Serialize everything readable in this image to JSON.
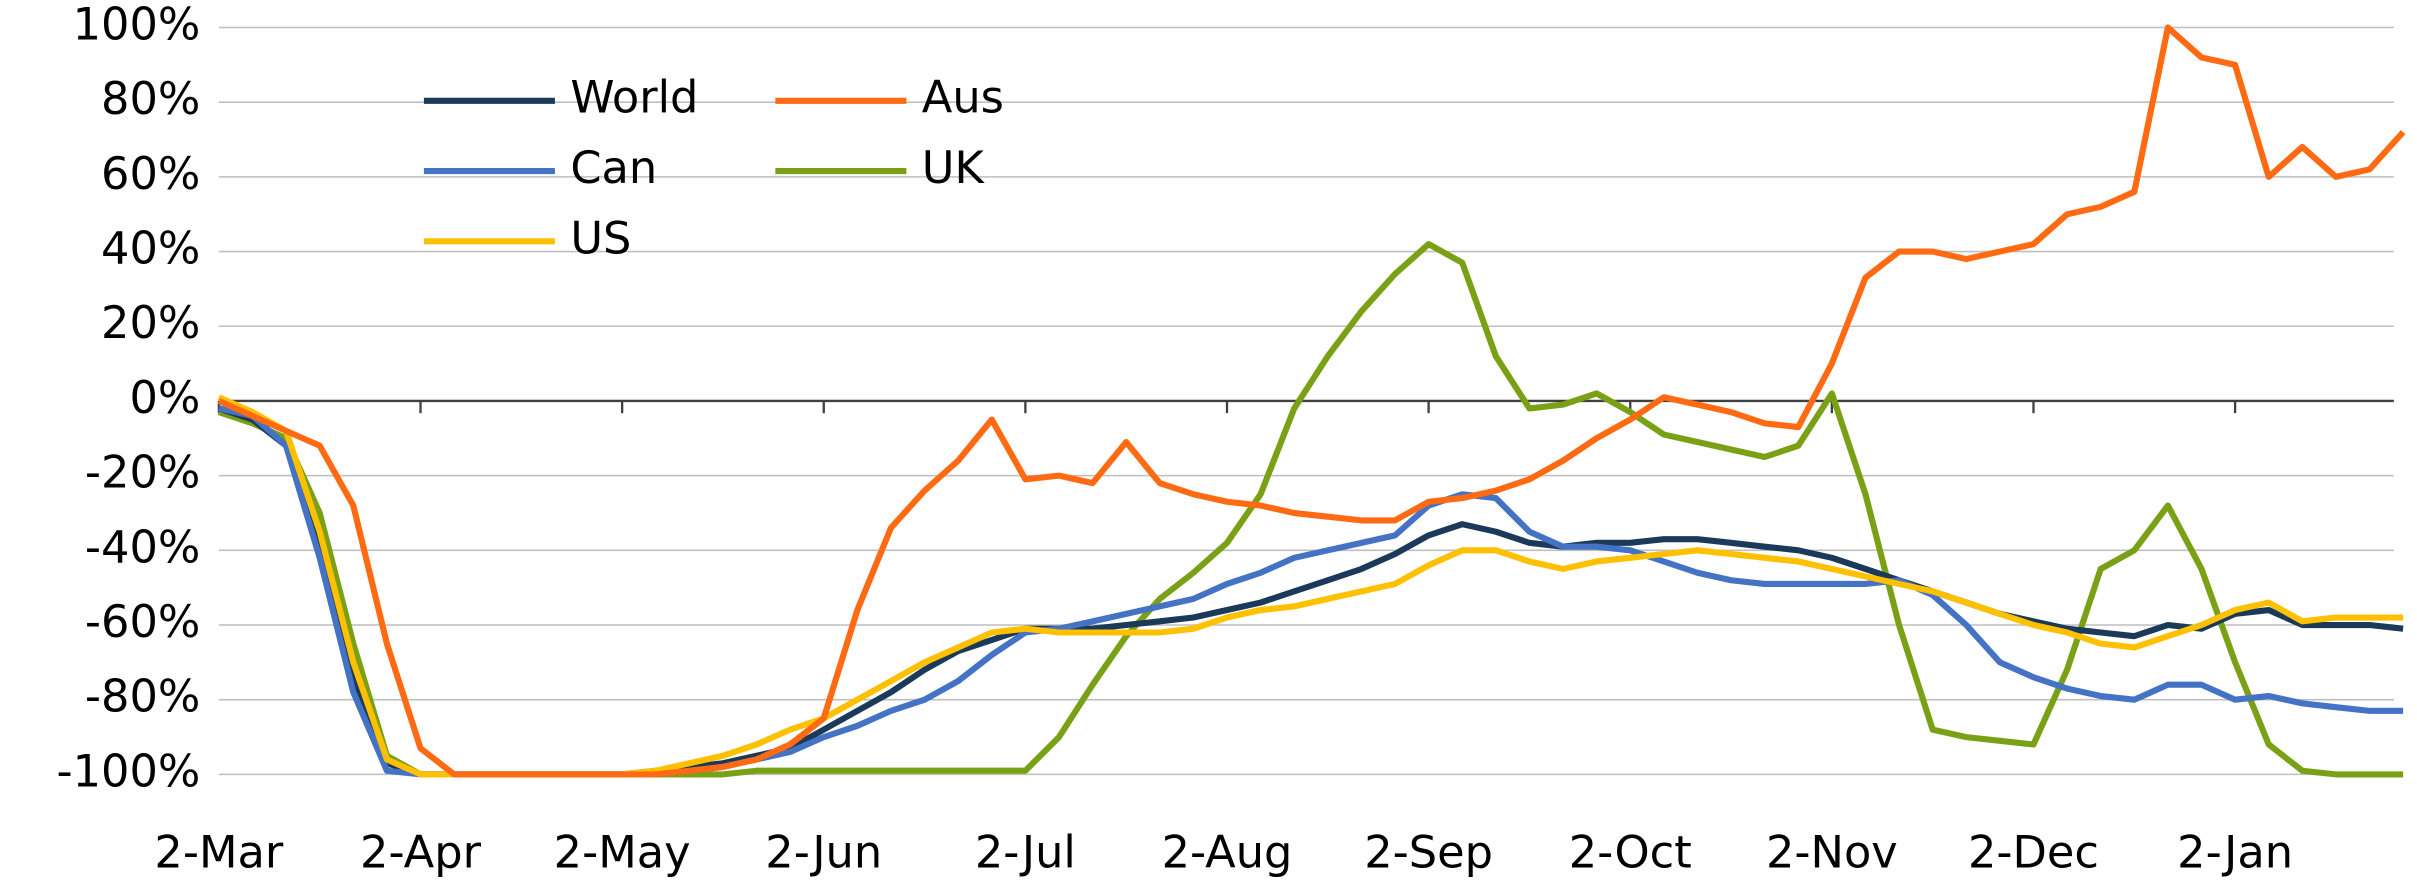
{
  "chart_data": {
    "type": "line",
    "categories": [
      "2-Mar",
      null,
      null,
      null,
      null,
      null,
      "2-Apr",
      null,
      null,
      null,
      null,
      null,
      "2-May",
      null,
      null,
      null,
      null,
      null,
      "2-Jun",
      null,
      null,
      null,
      null,
      null,
      "2-Jul",
      null,
      null,
      null,
      null,
      null,
      "2-Aug",
      null,
      null,
      null,
      null,
      null,
      "2-Sep",
      null,
      null,
      null,
      null,
      null,
      "2-Oct",
      null,
      null,
      null,
      null,
      null,
      "2-Nov",
      null,
      null,
      null,
      null,
      null,
      "2-Dec",
      null,
      null,
      null,
      null,
      null,
      "2-Jan",
      null,
      null,
      null,
      null,
      null
    ],
    "series": [
      {
        "name": "World",
        "color": "#1b3a5a",
        "values": [
          -2,
          -5,
          -12,
          -40,
          -75,
          -97,
          -100,
          -100,
          -100,
          -100,
          -100,
          -100,
          -100,
          -99,
          -98,
          -97,
          -95,
          -93,
          -88,
          -83,
          -78,
          -72,
          -67,
          -64,
          -61,
          -61,
          -61,
          -60,
          -59,
          -58,
          -56,
          -54,
          -51,
          -48,
          -45,
          -41,
          -36,
          -33,
          -35,
          -38,
          -39,
          -38,
          -38,
          -37,
          -37,
          -38,
          -39,
          -40,
          -42,
          -45,
          -48,
          -51,
          -54,
          -57,
          -59,
          -61,
          -62,
          -63,
          -60,
          -61,
          -57,
          -56,
          -60,
          -60,
          -60,
          -61
        ]
      },
      {
        "name": "Aus",
        "color": "#ff6a13",
        "values": [
          0,
          -4,
          -8,
          -12,
          -28,
          -65,
          -93,
          -100,
          -100,
          -100,
          -100,
          -100,
          -100,
          -100,
          -99,
          -98,
          -96,
          -92,
          -85,
          -56,
          -34,
          -24,
          -16,
          -5,
          -21,
          -20,
          -22,
          -11,
          -22,
          -25,
          -27,
          -28,
          -30,
          -31,
          -32,
          -32,
          -27,
          -26,
          -24,
          -21,
          -16,
          -10,
          -5,
          1,
          -1,
          -3,
          -6,
          -7,
          10,
          33,
          40,
          40,
          38,
          40,
          42,
          50,
          52,
          56,
          100,
          92,
          90,
          60,
          68,
          60,
          62,
          72
        ]
      },
      {
        "name": "Can",
        "color": "#4472c4",
        "values": [
          -2,
          -4,
          -12,
          -42,
          -78,
          -99,
          -100,
          -100,
          -100,
          -100,
          -100,
          -100,
          -100,
          -100,
          -99,
          -98,
          -96,
          -94,
          -90,
          -87,
          -83,
          -80,
          -75,
          -68,
          -62,
          -61,
          -59,
          -57,
          -55,
          -53,
          -49,
          -46,
          -42,
          -40,
          -38,
          -36,
          -28,
          -25,
          -26,
          -35,
          -39,
          -39,
          -40,
          -43,
          -46,
          -48,
          -49,
          -49,
          -49,
          -49,
          -48,
          -52,
          -60,
          -70,
          -74,
          -77,
          -79,
          -80,
          -76,
          -76,
          -80,
          -79,
          -81,
          -82,
          -83,
          -83
        ]
      },
      {
        "name": "UK",
        "color": "#7aa116",
        "values": [
          -3,
          -6,
          -10,
          -30,
          -65,
          -95,
          -100,
          -100,
          -100,
          -100,
          -100,
          -100,
          -100,
          -100,
          -100,
          -100,
          -99,
          -99,
          -99,
          -99,
          -99,
          -99,
          -99,
          -99,
          -99,
          -90,
          -76,
          -63,
          -53,
          -46,
          -38,
          -25,
          -2,
          12,
          24,
          34,
          42,
          37,
          12,
          -2,
          -1,
          2,
          -3,
          -9,
          -11,
          -13,
          -15,
          -12,
          2,
          -25,
          -60,
          -88,
          -90,
          -91,
          -92,
          -72,
          -45,
          -40,
          -28,
          -45,
          -70,
          -92,
          -99,
          -100,
          -100,
          -100
        ]
      },
      {
        "name": "US",
        "color": "#ffc000",
        "values": [
          1,
          -3,
          -8,
          -35,
          -70,
          -96,
          -100,
          -100,
          -100,
          -100,
          -100,
          -100,
          -100,
          -99,
          -97,
          -95,
          -92,
          -88,
          -85,
          -80,
          -75,
          -70,
          -66,
          -62,
          -61,
          -62,
          -62,
          -62,
          -62,
          -61,
          -58,
          -56,
          -55,
          -53,
          -51,
          -49,
          -44,
          -40,
          -40,
          -43,
          -45,
          -43,
          -42,
          -41,
          -40,
          -41,
          -42,
          -43,
          -45,
          -47,
          -49,
          -51,
          -54,
          -57,
          -60,
          -62,
          -65,
          -66,
          -63,
          -60,
          -56,
          -54,
          -59,
          -58,
          -58,
          -58
        ]
      }
    ],
    "ylim": [
      -100,
      100
    ],
    "yticks": [
      {
        "value": 100,
        "label": "100%"
      },
      {
        "value": 80,
        "label": "80%"
      },
      {
        "value": 60,
        "label": "60%"
      },
      {
        "value": 40,
        "label": "40%"
      },
      {
        "value": 20,
        "label": "20%"
      },
      {
        "value": 0,
        "label": "0%"
      },
      {
        "value": -20,
        "label": "-20%"
      },
      {
        "value": -40,
        "label": "-40%"
      },
      {
        "value": -60,
        "label": "-60%"
      },
      {
        "value": -80,
        "label": "-80%"
      },
      {
        "value": -100,
        "label": "-100%"
      }
    ],
    "grid": true,
    "legend": "top-left"
  }
}
